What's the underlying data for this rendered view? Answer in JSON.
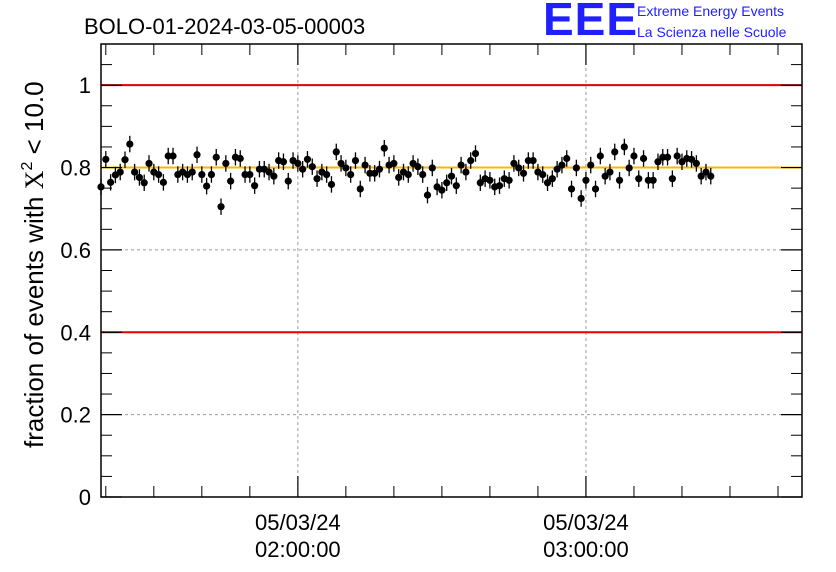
{
  "chart_data": {
    "type": "scatter",
    "title": "BOLO-01-2024-03-05-00003",
    "ylabel_prefix": "fraction of events with ",
    "ylabel_chi": "X",
    "ylabel_sup": "2",
    "ylabel_suffix": " < 10.0",
    "ylim": [
      0,
      1.1
    ],
    "y_ticks": [
      "0",
      "0.2",
      "0.4",
      "0.6",
      "0.8",
      "1"
    ],
    "x_ticks": [
      {
        "date": "05/03/24",
        "time": "02:00:00"
      },
      {
        "date": "05/03/24",
        "time": "03:00:00"
      }
    ],
    "x_range": [
      "01:19:00",
      "03:45:00"
    ],
    "reference_lines": [
      {
        "y": 1.0,
        "color": "#e00000"
      },
      {
        "y": 0.4,
        "color": "#e00000"
      },
      {
        "y": 0.8,
        "color": "#ffb400"
      }
    ],
    "grid": true,
    "series": [
      {
        "error": 0.02,
        "points": [
          {
            "t": "01:19:00",
            "y": 0.753
          },
          {
            "t": "01:20:00",
            "y": 0.82
          },
          {
            "t": "01:21:00",
            "y": 0.764
          },
          {
            "t": "01:22:00",
            "y": 0.782
          },
          {
            "t": "01:23:00",
            "y": 0.789
          },
          {
            "t": "01:24:00",
            "y": 0.819
          },
          {
            "t": "01:25:00",
            "y": 0.857
          },
          {
            "t": "01:26:00",
            "y": 0.789
          },
          {
            "t": "01:27:00",
            "y": 0.776
          },
          {
            "t": "01:28:00",
            "y": 0.763
          },
          {
            "t": "01:29:00",
            "y": 0.81
          },
          {
            "t": "01:30:00",
            "y": 0.789
          },
          {
            "t": "01:31:00",
            "y": 0.783
          },
          {
            "t": "01:32:00",
            "y": 0.764
          },
          {
            "t": "01:33:00",
            "y": 0.828
          },
          {
            "t": "01:34:00",
            "y": 0.828
          },
          {
            "t": "01:35:00",
            "y": 0.783
          },
          {
            "t": "01:36:00",
            "y": 0.789
          },
          {
            "t": "01:37:00",
            "y": 0.783
          },
          {
            "t": "01:38:00",
            "y": 0.789
          },
          {
            "t": "01:39:00",
            "y": 0.831
          },
          {
            "t": "01:40:00",
            "y": 0.783
          },
          {
            "t": "01:41:00",
            "y": 0.755
          },
          {
            "t": "01:42:00",
            "y": 0.783
          },
          {
            "t": "01:43:00",
            "y": 0.825
          },
          {
            "t": "01:44:00",
            "y": 0.705
          },
          {
            "t": "01:45:00",
            "y": 0.81
          },
          {
            "t": "01:46:00",
            "y": 0.767
          },
          {
            "t": "01:47:00",
            "y": 0.825
          },
          {
            "t": "01:48:00",
            "y": 0.822
          },
          {
            "t": "01:49:00",
            "y": 0.783
          },
          {
            "t": "01:50:00",
            "y": 0.783
          },
          {
            "t": "01:51:00",
            "y": 0.756
          },
          {
            "t": "01:52:00",
            "y": 0.796
          },
          {
            "t": "01:53:00",
            "y": 0.796
          },
          {
            "t": "01:54:00",
            "y": 0.789
          },
          {
            "t": "01:55:00",
            "y": 0.779
          },
          {
            "t": "01:56:00",
            "y": 0.817
          },
          {
            "t": "01:57:00",
            "y": 0.814
          },
          {
            "t": "01:58:00",
            "y": 0.767
          },
          {
            "t": "01:59:00",
            "y": 0.817
          },
          {
            "t": "02:00:00",
            "y": 0.81
          },
          {
            "t": "02:01:00",
            "y": 0.796
          },
          {
            "t": "02:02:00",
            "y": 0.82
          },
          {
            "t": "02:03:00",
            "y": 0.802
          },
          {
            "t": "02:04:00",
            "y": 0.773
          },
          {
            "t": "02:05:00",
            "y": 0.789
          },
          {
            "t": "02:06:00",
            "y": 0.783
          },
          {
            "t": "02:07:00",
            "y": 0.759
          },
          {
            "t": "02:08:00",
            "y": 0.838
          },
          {
            "t": "02:09:00",
            "y": 0.81
          },
          {
            "t": "02:10:00",
            "y": 0.799
          },
          {
            "t": "02:11:00",
            "y": 0.783
          },
          {
            "t": "02:12:00",
            "y": 0.817
          },
          {
            "t": "02:13:00",
            "y": 0.748
          },
          {
            "t": "02:14:00",
            "y": 0.806
          },
          {
            "t": "02:15:00",
            "y": 0.786
          },
          {
            "t": "02:16:00",
            "y": 0.786
          },
          {
            "t": "02:17:00",
            "y": 0.796
          },
          {
            "t": "02:18:00",
            "y": 0.847
          },
          {
            "t": "02:19:00",
            "y": 0.806
          },
          {
            "t": "02:20:00",
            "y": 0.81
          },
          {
            "t": "02:21:00",
            "y": 0.776
          },
          {
            "t": "02:22:00",
            "y": 0.789
          },
          {
            "t": "02:23:00",
            "y": 0.783
          },
          {
            "t": "02:24:00",
            "y": 0.81
          },
          {
            "t": "02:25:00",
            "y": 0.802
          },
          {
            "t": "02:26:00",
            "y": 0.783
          },
          {
            "t": "02:27:00",
            "y": 0.733
          },
          {
            "t": "02:28:00",
            "y": 0.799
          },
          {
            "t": "02:29:00",
            "y": 0.753
          },
          {
            "t": "02:30:00",
            "y": 0.745
          },
          {
            "t": "02:31:00",
            "y": 0.763
          },
          {
            "t": "02:32:00",
            "y": 0.779
          },
          {
            "t": "02:33:00",
            "y": 0.756
          },
          {
            "t": "02:34:00",
            "y": 0.806
          },
          {
            "t": "02:35:00",
            "y": 0.789
          },
          {
            "t": "02:36:00",
            "y": 0.817
          },
          {
            "t": "02:37:00",
            "y": 0.834
          },
          {
            "t": "02:38:00",
            "y": 0.763
          },
          {
            "t": "02:39:00",
            "y": 0.773
          },
          {
            "t": "02:40:00",
            "y": 0.769
          },
          {
            "t": "02:41:00",
            "y": 0.753
          },
          {
            "t": "02:42:00",
            "y": 0.756
          },
          {
            "t": "02:43:00",
            "y": 0.773
          },
          {
            "t": "02:44:00",
            "y": 0.769
          },
          {
            "t": "02:45:00",
            "y": 0.81
          },
          {
            "t": "02:46:00",
            "y": 0.799
          },
          {
            "t": "02:47:00",
            "y": 0.786
          },
          {
            "t": "02:48:00",
            "y": 0.817
          },
          {
            "t": "02:49:00",
            "y": 0.817
          },
          {
            "t": "02:50:00",
            "y": 0.789
          },
          {
            "t": "02:51:00",
            "y": 0.783
          },
          {
            "t": "02:52:00",
            "y": 0.763
          },
          {
            "t": "02:53:00",
            "y": 0.773
          },
          {
            "t": "02:54:00",
            "y": 0.796
          },
          {
            "t": "02:55:00",
            "y": 0.806
          },
          {
            "t": "02:56:00",
            "y": 0.822
          },
          {
            "t": "02:57:00",
            "y": 0.748
          },
          {
            "t": "02:58:00",
            "y": 0.799
          },
          {
            "t": "02:59:00",
            "y": 0.725
          },
          {
            "t": "03:00:00",
            "y": 0.769
          },
          {
            "t": "03:01:00",
            "y": 0.806
          },
          {
            "t": "03:02:00",
            "y": 0.748
          },
          {
            "t": "03:03:00",
            "y": 0.828
          },
          {
            "t": "03:04:00",
            "y": 0.779
          },
          {
            "t": "03:05:00",
            "y": 0.789
          },
          {
            "t": "03:06:00",
            "y": 0.838
          },
          {
            "t": "03:07:00",
            "y": 0.769
          },
          {
            "t": "03:08:00",
            "y": 0.85
          },
          {
            "t": "03:09:00",
            "y": 0.799
          },
          {
            "t": "03:10:00",
            "y": 0.828
          },
          {
            "t": "03:11:00",
            "y": 0.773
          },
          {
            "t": "03:12:00",
            "y": 0.822
          },
          {
            "t": "03:13:00",
            "y": 0.769
          },
          {
            "t": "03:14:00",
            "y": 0.769
          },
          {
            "t": "03:15:00",
            "y": 0.814
          },
          {
            "t": "03:16:00",
            "y": 0.825
          },
          {
            "t": "03:17:00",
            "y": 0.825
          },
          {
            "t": "03:18:00",
            "y": 0.773
          },
          {
            "t": "03:19:00",
            "y": 0.828
          },
          {
            "t": "03:20:00",
            "y": 0.814
          },
          {
            "t": "03:21:00",
            "y": 0.822
          },
          {
            "t": "03:22:00",
            "y": 0.82
          },
          {
            "t": "03:23:00",
            "y": 0.81
          },
          {
            "t": "03:24:00",
            "y": 0.779
          },
          {
            "t": "03:25:00",
            "y": 0.789
          },
          {
            "t": "03:26:00",
            "y": 0.779
          }
        ]
      }
    ]
  },
  "logo": {
    "mark": "EEE",
    "line1": "Extreme Energy Events",
    "line2": "La Scienza nelle Scuole"
  }
}
